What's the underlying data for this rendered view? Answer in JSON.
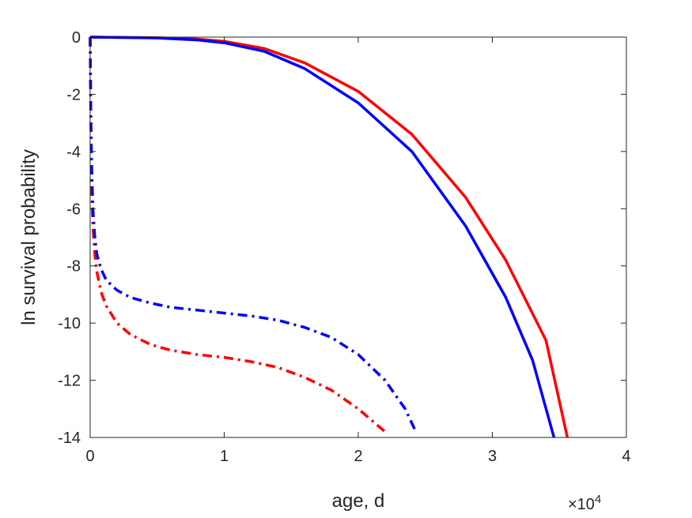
{
  "chart_data": {
    "type": "line",
    "title": "",
    "xlabel": "age, d",
    "ylabel": "ln survival probability",
    "x_exponent_label": {
      "base": "×10",
      "exponent": "4"
    },
    "xlim": [
      0,
      4
    ],
    "ylim": [
      -14,
      0
    ],
    "x_ticks": [
      0,
      1,
      2,
      3,
      4
    ],
    "x_tick_labels": [
      "0",
      "1",
      "2",
      "3",
      "4"
    ],
    "y_ticks": [
      0,
      -2,
      -4,
      -6,
      -8,
      -10,
      -12,
      -14
    ],
    "y_tick_labels": [
      "0",
      "-2",
      "-4",
      "-6",
      "-8",
      "-10",
      "-12",
      "-14"
    ],
    "grid": false,
    "box": true,
    "x_units_note": "x values in units of 10^4 days",
    "series": [
      {
        "color": "#ff0000",
        "style": "solid",
        "x": [
          0,
          0.5,
          0.8,
          1.0,
          1.3,
          1.6,
          2.0,
          2.4,
          2.8,
          3.1,
          3.4,
          3.56
        ],
        "y": [
          0,
          -0.02,
          -0.07,
          -0.15,
          -0.4,
          -0.9,
          -1.9,
          -3.4,
          -5.6,
          -7.8,
          -10.6,
          -14
        ]
      },
      {
        "color": "#0000ff",
        "style": "solid",
        "x": [
          0,
          0.5,
          0.8,
          1.0,
          1.3,
          1.6,
          2.0,
          2.4,
          2.8,
          3.1,
          3.3,
          3.46
        ],
        "y": [
          0,
          -0.03,
          -0.1,
          -0.2,
          -0.5,
          -1.1,
          -2.3,
          -4.0,
          -6.6,
          -9.1,
          -11.3,
          -14
        ]
      },
      {
        "color": "#ff0000",
        "style": "dashdot",
        "x": [
          0.0,
          0.005,
          0.01,
          0.02,
          0.035,
          0.05,
          0.08,
          0.12,
          0.2,
          0.3,
          0.45,
          0.6,
          0.8,
          1.0,
          1.2,
          1.4,
          1.6,
          1.8,
          2.0,
          2.1,
          2.2
        ],
        "y": [
          0,
          -3.0,
          -5.0,
          -6.6,
          -7.6,
          -8.2,
          -8.9,
          -9.4,
          -10.0,
          -10.4,
          -10.75,
          -10.95,
          -11.1,
          -11.2,
          -11.35,
          -11.55,
          -11.9,
          -12.35,
          -13.0,
          -13.4,
          -13.8
        ]
      },
      {
        "color": "#0000ff",
        "style": "dashdot",
        "x": [
          0.0,
          0.005,
          0.01,
          0.02,
          0.035,
          0.05,
          0.08,
          0.12,
          0.2,
          0.3,
          0.45,
          0.6,
          0.8,
          1.0,
          1.2,
          1.4,
          1.6,
          1.8,
          2.0,
          2.2,
          2.35,
          2.43
        ],
        "y": [
          0,
          -2.5,
          -4.3,
          -6.0,
          -7.0,
          -7.6,
          -8.1,
          -8.5,
          -8.85,
          -9.1,
          -9.3,
          -9.45,
          -9.55,
          -9.65,
          -9.75,
          -9.9,
          -10.15,
          -10.5,
          -11.1,
          -12.0,
          -13.0,
          -13.8
        ]
      }
    ]
  }
}
